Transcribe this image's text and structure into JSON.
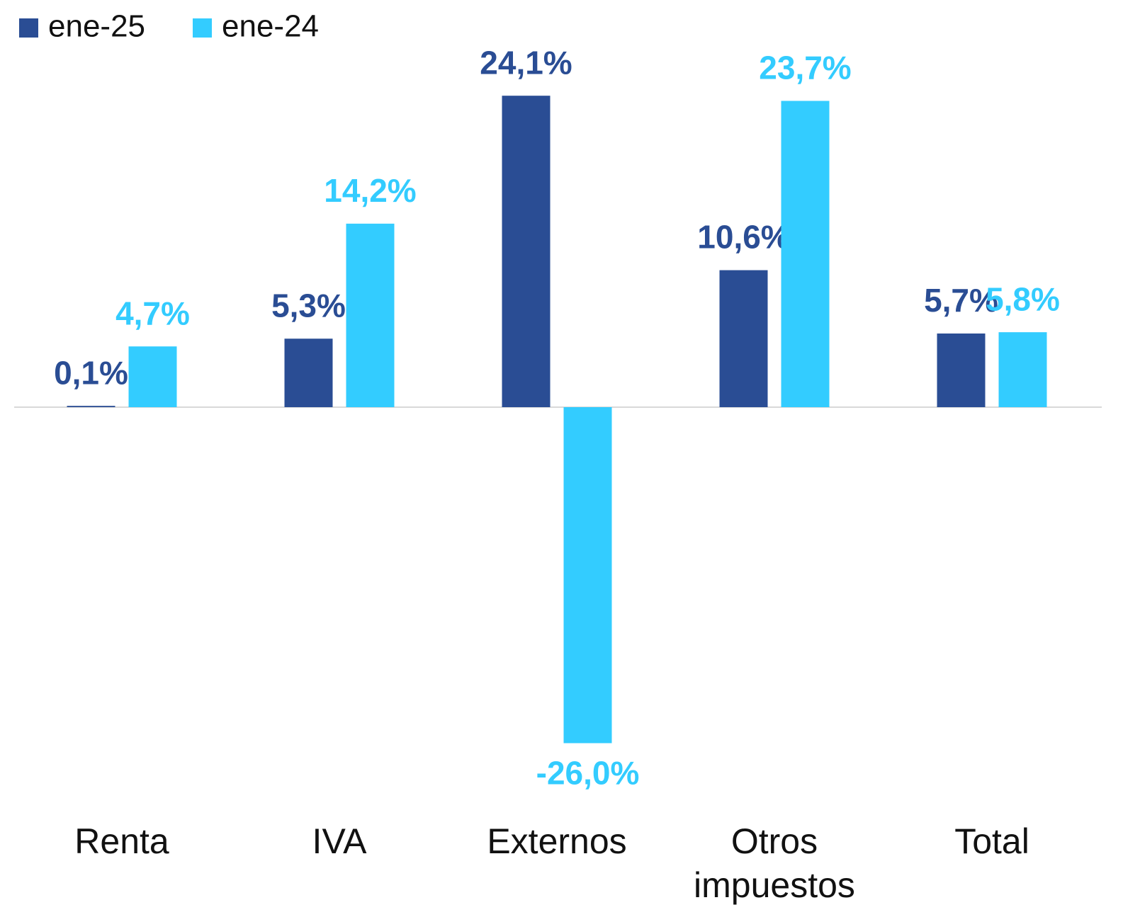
{
  "chart_data": {
    "type": "bar",
    "categories": [
      "Renta",
      "IVA",
      "Externos",
      "Otros impuestos",
      "Total"
    ],
    "series": [
      {
        "name": "ene-25",
        "color": "#2a4d94",
        "values": [
          0.1,
          5.3,
          24.1,
          10.6,
          5.7
        ],
        "value_labels": [
          "0,1%",
          "5,3%",
          "24,1%",
          "10,6%",
          "5,7%"
        ]
      },
      {
        "name": "ene-24",
        "color": "#33ccff",
        "values": [
          4.7,
          14.2,
          -26.0,
          23.7,
          5.8
        ],
        "value_labels": [
          "4,7%",
          "14,2%",
          "-26,0%",
          "23,7%",
          "5,8%"
        ]
      }
    ],
    "legend": "top-left"
  }
}
